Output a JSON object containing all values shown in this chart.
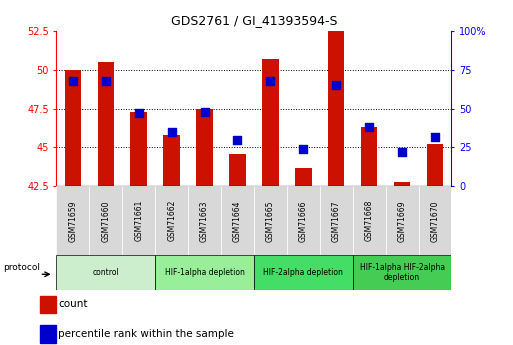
{
  "title": "GDS2761 / GI_41393594-S",
  "samples": [
    "GSM71659",
    "GSM71660",
    "GSM71661",
    "GSM71662",
    "GSM71663",
    "GSM71664",
    "GSM71665",
    "GSM71666",
    "GSM71667",
    "GSM71668",
    "GSM71669",
    "GSM71670"
  ],
  "counts": [
    50.0,
    50.5,
    47.3,
    45.8,
    47.5,
    44.6,
    50.7,
    43.7,
    52.5,
    46.3,
    42.8,
    45.2
  ],
  "percentile_ranks": [
    68,
    68,
    47,
    35,
    48,
    30,
    68,
    24,
    65,
    38,
    22,
    32
  ],
  "ylim_left": [
    42.5,
    52.5
  ],
  "ylim_right": [
    0,
    100
  ],
  "yticks_left": [
    42.5,
    45.0,
    47.5,
    50.0,
    52.5
  ],
  "ytick_labels_left": [
    "42.5",
    "45",
    "47.5",
    "50",
    "52.5"
  ],
  "yticks_right": [
    0,
    25,
    50,
    75,
    100
  ],
  "ytick_labels_right": [
    "0",
    "25",
    "50",
    "75",
    "100%"
  ],
  "bar_color": "#cc1100",
  "dot_color": "#0000cc",
  "background_color": "#ffffff",
  "protocols": [
    {
      "label": "control",
      "start": 0,
      "end": 2,
      "color": "#cceecc"
    },
    {
      "label": "HIF-1alpha depletion",
      "start": 3,
      "end": 5,
      "color": "#99ee99"
    },
    {
      "label": "HIF-2alpha depletion",
      "start": 6,
      "end": 8,
      "color": "#44dd66"
    },
    {
      "label": "HIF-1alpha HIF-2alpha\ndepletion",
      "start": 9,
      "end": 11,
      "color": "#44cc55"
    }
  ],
  "legend_count_label": "count",
  "legend_pct_label": "percentile rank within the sample",
  "bar_width": 0.5,
  "dot_size": 28
}
